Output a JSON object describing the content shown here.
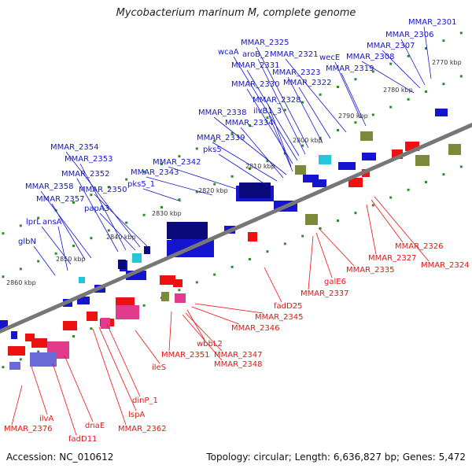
{
  "title": "Mycobacterium marinum M, complete genome",
  "footer": {
    "accession": "Accession: NC_010612",
    "summary": "Topology: circular; Length: 6,636,827 bp; Genes: 5,472"
  },
  "colors": {
    "forward": "#1515d0",
    "reverse": "#ee1111",
    "axis": "#777777",
    "ticks": "#2e8b2e"
  },
  "ruler_labels": [
    "2770 kbp",
    "2780 kbp",
    "2790 kbp",
    "2800 kbp",
    "2810 kbp",
    "2820 kbp",
    "2830 kbp",
    "2840 kbp",
    "2850 kbp",
    "2860 kbp"
  ],
  "forward_labels": [
    "MMAR_2301",
    "MMAR_2306",
    "MMAR_2307",
    "MMAR_2308",
    "MMAR_2319",
    "wecE",
    "MMAR_2321",
    "MMAR_2322",
    "MMAR_2323",
    "MMAR_2325",
    "aroB_2",
    "MMAR_2331",
    "wcaA",
    "MMAR_2330",
    "MMAR_2328",
    "ilvB1_3",
    "MMAR_2338",
    "MMAR_2334",
    "MMAR_2339",
    "pks5",
    "MMAR_2342",
    "MMAR_2343",
    "pks5_1",
    "MMAR_2350",
    "papA3",
    "MMAR_2354",
    "MMAR_2353",
    "MMAR_2352",
    "MMAR_2358",
    "MMAR_2357",
    "lprL",
    "ansA",
    "glbN"
  ],
  "reverse_labels": [
    "MMAR_2324",
    "MMAR_2326",
    "MMAR_2327",
    "MMAR_2335",
    "galE6",
    "MMAR_2337",
    "fadD25",
    "MMAR_2345",
    "MMAR_2346",
    "wbbL2",
    "MMAR_2347",
    "MMAR_2348",
    "MMAR_2351",
    "ileS",
    "dinP_1",
    "lspA",
    "MMAR_2362",
    "dnaE",
    "fadD11",
    "ilvA",
    "MMAR_2376"
  ]
}
